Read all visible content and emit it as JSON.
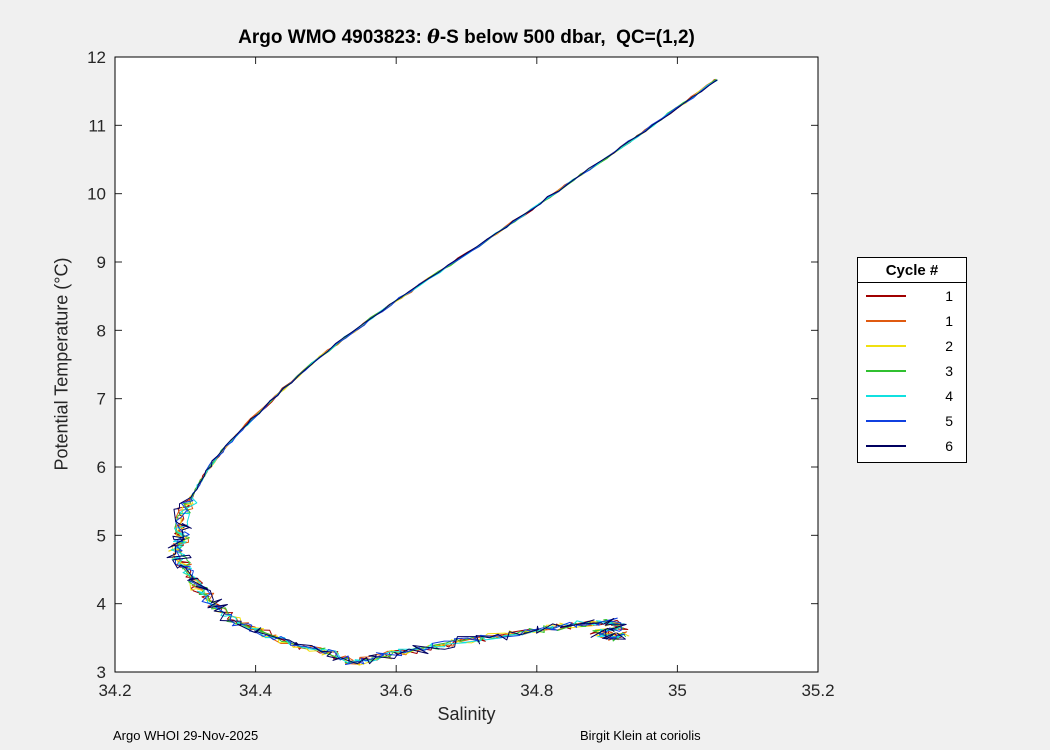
{
  "figure": {
    "background": "#f0f0f0",
    "title": {
      "prefix": "Argo WMO 4903823: ",
      "theta": "θ",
      "suffix": "-S below 500 dbar,  QC=(1,2)"
    }
  },
  "axes": {
    "xlabel": "Salinity",
    "ylabel": "Potential Temperature (°C)",
    "x_tick_labels": [
      "34.2",
      "34.4",
      "34.6",
      "34.8",
      "35",
      "35.2"
    ],
    "y_tick_labels": [
      "3",
      "4",
      "5",
      "6",
      "7",
      "8",
      "9",
      "10",
      "11",
      "12"
    ],
    "xlim": [
      34.2,
      35.2
    ],
    "ylim": [
      3,
      12
    ]
  },
  "legend": {
    "title": "Cycle #"
  },
  "footer": {
    "left": "Argo WHOI 29-Nov-2025",
    "right": "Birgit Klein at coriolis"
  },
  "chart_data": {
    "type": "line",
    "title": "Argo WMO 4903823: θ-S below 500 dbar, QC=(1,2)",
    "xlabel": "Salinity",
    "ylabel": "Potential Temperature (°C)",
    "xlim": [
      34.2,
      35.2
    ],
    "ylim": [
      3,
      12
    ],
    "grid": false,
    "legend_title": "Cycle #",
    "legend_position": "right-outside",
    "series": [
      {
        "name": "1",
        "color": "#a00000"
      },
      {
        "name": "1",
        "color": "#e05a10"
      },
      {
        "name": "2",
        "color": "#f0e010"
      },
      {
        "name": "3",
        "color": "#30c030"
      },
      {
        "name": "4",
        "color": "#10e0e0"
      },
      {
        "name": "5",
        "color": "#1040e0"
      },
      {
        "name": "6",
        "color": "#000060"
      }
    ],
    "base_curve": {
      "salinity": [
        35.055,
        35.01,
        34.965,
        34.92,
        34.875,
        34.83,
        34.78,
        34.73,
        34.675,
        34.62,
        34.565,
        34.515,
        34.47,
        34.43,
        34.395,
        34.365,
        34.34,
        34.322,
        34.308,
        34.298,
        34.292,
        34.297,
        34.285,
        34.293,
        34.303,
        34.312,
        34.326,
        34.342,
        34.36,
        34.382,
        34.41,
        34.44,
        34.475,
        34.51,
        34.535,
        34.565,
        34.6,
        34.64,
        34.68,
        34.72,
        34.76,
        34.8,
        34.84,
        34.875,
        34.905,
        34.92,
        34.885,
        34.91,
        34.925
      ],
      "theta": [
        11.67,
        11.33,
        11.0,
        10.68,
        10.36,
        10.04,
        9.68,
        9.33,
        8.95,
        8.57,
        8.18,
        7.8,
        7.42,
        7.05,
        6.7,
        6.38,
        6.08,
        5.8,
        5.55,
        5.32,
        5.12,
        4.95,
        4.8,
        4.65,
        4.5,
        4.33,
        4.15,
        3.98,
        3.82,
        3.68,
        3.56,
        3.45,
        3.35,
        3.26,
        3.12,
        3.2,
        3.28,
        3.36,
        3.43,
        3.49,
        3.55,
        3.61,
        3.67,
        3.71,
        3.74,
        3.66,
        3.57,
        3.5,
        3.56
      ]
    }
  }
}
